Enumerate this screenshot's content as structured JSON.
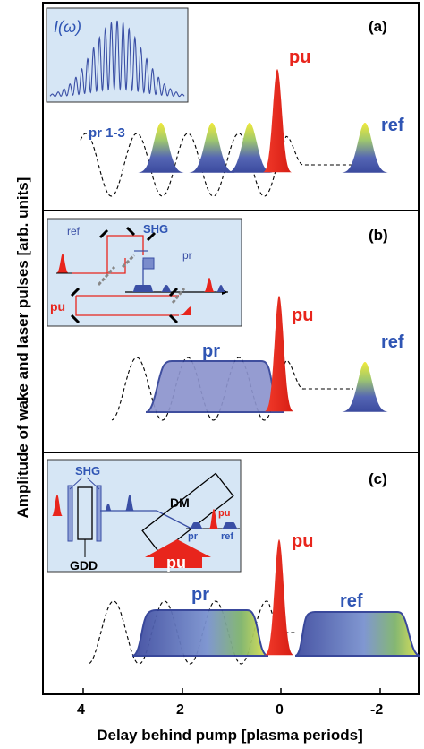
{
  "figure": {
    "ylabel": "Amplitude of wake and laser pulses [arb. units]",
    "xlabel": "Delay behind pump [plasma periods]",
    "x_ticks": [
      "4",
      "2",
      "0",
      "-2"
    ]
  },
  "panel_a": {
    "tag": "(a)",
    "inset_label": "I(ω)",
    "pu": "pu",
    "probe": "pr 1-3",
    "ref": "ref"
  },
  "panel_b": {
    "tag": "(b)",
    "pu": "pu",
    "probe": "pr",
    "ref": "ref",
    "inset_ref": "ref",
    "inset_shg": "SHG",
    "inset_pr": "pr",
    "inset_pu": "pu"
  },
  "panel_c": {
    "tag": "(c)",
    "pu": "pu",
    "probe": "pr",
    "ref": "ref",
    "inset_shg": "SHG",
    "inset_gdd": "GDD",
    "inset_dm": "DM",
    "inset_pu_small": "pu",
    "inset_pr": "pr",
    "inset_ref": "ref",
    "inset_pu_big": "pu"
  },
  "colors": {
    "pump": "#e8251c",
    "probe": "#3a4fa5",
    "inset_bg": "#d6e6f5",
    "probe_text": "#2f55b4"
  }
}
